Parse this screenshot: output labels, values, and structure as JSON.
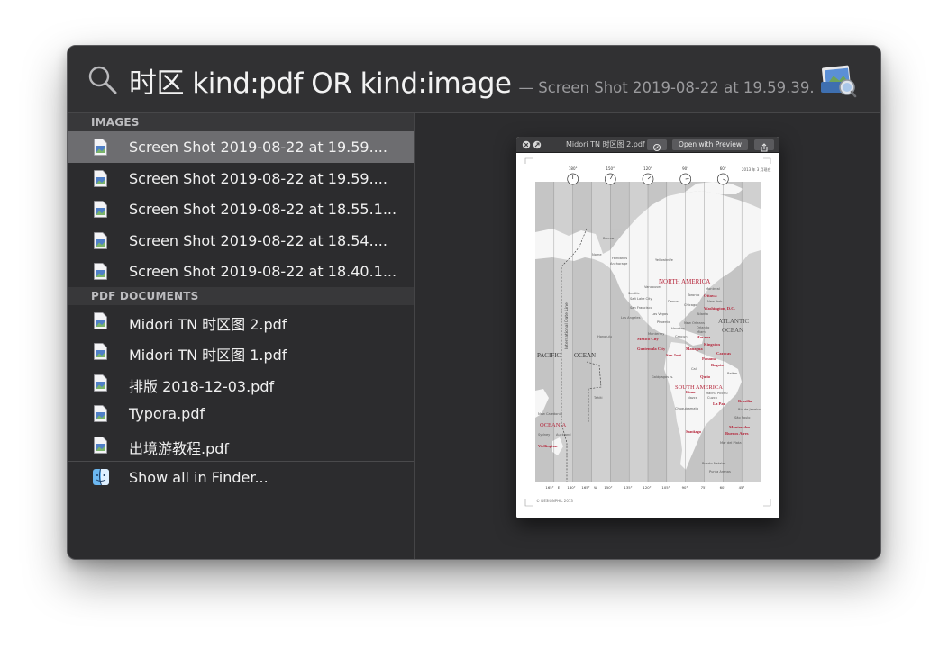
{
  "search": {
    "query": "时区 kind:pdf OR kind:image",
    "hint": "— Screen Shot 2019-08-22 at 19.59.39."
  },
  "sections": {
    "images": {
      "header": "IMAGES",
      "items": [
        {
          "label": "Screen Shot 2019-08-22 at 19.59....",
          "icon": "image-file-icon",
          "selected": true
        },
        {
          "label": "Screen Shot 2019-08-22 at 19.59....",
          "icon": "image-file-icon"
        },
        {
          "label": "Screen Shot 2019-08-22 at 18.55.1...",
          "icon": "image-file-icon"
        },
        {
          "label": "Screen Shot 2019-08-22 at 18.54....",
          "icon": "image-file-icon"
        },
        {
          "label": "Screen Shot 2019-08-22 at 18.40.1...",
          "icon": "image-file-icon"
        }
      ]
    },
    "pdfs": {
      "header": "PDF DOCUMENTS",
      "items": [
        {
          "label": "Midori TN 时区图 2.pdf",
          "icon": "pdf-file-icon"
        },
        {
          "label": "Midori TN 时区图 1.pdf",
          "icon": "pdf-file-icon"
        },
        {
          "label": "排版 2018-12-03.pdf",
          "icon": "pdf-file-icon"
        },
        {
          "label": "Typora.pdf",
          "icon": "pdf-file-icon"
        },
        {
          "label": "出境游教程.pdf",
          "icon": "pdf-file-icon"
        }
      ]
    },
    "finder": {
      "label": "Show all in Finder...",
      "icon": "finder-icon"
    }
  },
  "preview": {
    "window_title": "Midori TN 时区图 2.pdf",
    "open_button": "Open with Preview",
    "map": {
      "top_times": [
        "180°",
        "150°",
        "120°",
        "90°",
        "60°"
      ],
      "year_note": "2013 年\n3 月现在",
      "bottom_labels": [
        "165°",
        "E",
        "180°",
        "165°",
        "W",
        "150°",
        "135°",
        "120°",
        "105°",
        "90°",
        "75°",
        "60°",
        "45°"
      ],
      "regions": [
        "NORTH AMERICA",
        "ATLANTIC",
        "OCEAN",
        "PACIFIC",
        "OCEAN",
        "SOUTH AMERICA",
        "OCEANIA"
      ],
      "date_line": "International Date Line",
      "copyright": "© DESIGNPHIL 2013",
      "cities_grey": [
        "Barrow",
        "Nome",
        "Fairbanks",
        "Anchorage",
        "Yellowknife",
        "Vancouver",
        "Seattle",
        "Salt Lake City",
        "Denver",
        "San Francisco",
        "Los Angeles",
        "Las Vegas",
        "Phoenix",
        "Chicago",
        "Montreal",
        "Toronto",
        "New York",
        "Atlanta",
        "New Orleans",
        "Orlando",
        "Miami",
        "Houston",
        "Monterrey",
        "Cancun",
        "Honolulu",
        "Cali",
        "Galápagos Is.",
        "Belém",
        "Machu Picchu",
        "Nazca",
        "Cuzco",
        "Chuquicamata",
        "Rio de Janeiro",
        "São Paulo",
        "Mar del Plata",
        "Puerto Natales",
        "Punta Arenas",
        "Tahiti",
        "New Caledonia",
        "Sydney",
        "Auckland"
      ],
      "cities_red": [
        "Ottawa",
        "Washington, D.C.",
        "Havana",
        "Mexico City",
        "Kingston",
        "Managua",
        "Guatemala City",
        "San José",
        "Caracas",
        "Panama",
        "Bogota",
        "Quito",
        "Lima",
        "La Paz",
        "Brasilia",
        "Santiago",
        "Montevideo",
        "Buenos Aires",
        "Wellington"
      ]
    }
  },
  "colors": {
    "panel_bg": "#2c2c2e",
    "selected_row": "#6d6d70",
    "map_red": "#b5253a",
    "map_land": "#f4f4f4",
    "map_sea": "#cfcfcf"
  }
}
